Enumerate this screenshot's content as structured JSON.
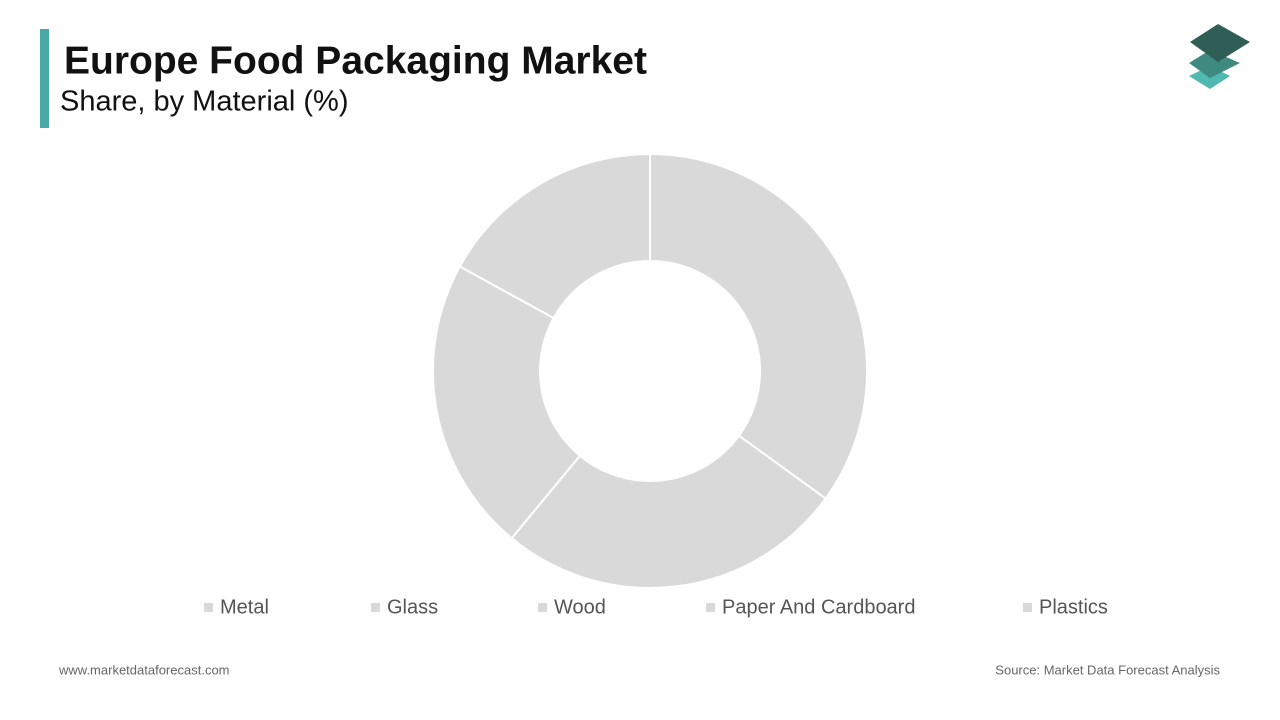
{
  "chart_data": {
    "type": "donut",
    "title": "Europe Food Packaging Market",
    "subtitle": "Share, by Material (%)",
    "categories": [
      "Metal",
      "Glass",
      "Wood",
      "Paper And Cardboard",
      "Plastics"
    ],
    "values": [
      35,
      26,
      22,
      17,
      0
    ],
    "color": "#d9d9d9",
    "source": "Source: Market Data Forecast Analysis",
    "website": "www.marketdataforecast.com"
  }
}
